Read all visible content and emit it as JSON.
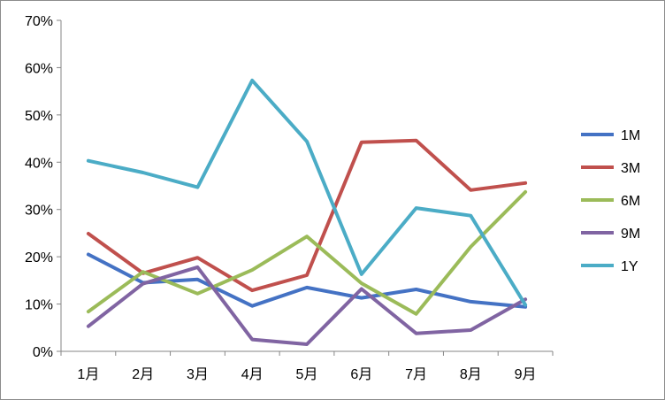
{
  "chart_data": {
    "type": "line",
    "title": "",
    "xlabel": "",
    "ylabel": "",
    "categories": [
      "1月",
      "2月",
      "3月",
      "4月",
      "5月",
      "6月",
      "7月",
      "8月",
      "9月"
    ],
    "y_ticks": [
      "0%",
      "10%",
      "20%",
      "30%",
      "40%",
      "50%",
      "60%",
      "70%"
    ],
    "ylim": [
      0,
      70
    ],
    "y_unit": "%",
    "grid": false,
    "legend_position": "right",
    "series": [
      {
        "name": "1M",
        "color": "#4472C4",
        "values": [
          20.5,
          14.5,
          15.2,
          9.6,
          13.5,
          11.3,
          13.1,
          10.5,
          9.4
        ]
      },
      {
        "name": "3M",
        "color": "#C0504D",
        "values": [
          24.9,
          16.5,
          19.8,
          12.9,
          16.1,
          44.2,
          44.6,
          34.1,
          35.6
        ]
      },
      {
        "name": "6M",
        "color": "#9BBB59",
        "values": [
          8.4,
          16.8,
          12.2,
          17.2,
          24.3,
          14.4,
          7.9,
          22.1,
          33.7
        ]
      },
      {
        "name": "9M",
        "color": "#8064A2",
        "values": [
          5.3,
          14.3,
          17.8,
          2.5,
          1.5,
          13.2,
          3.8,
          4.5,
          11.0
        ]
      },
      {
        "name": "1Y",
        "color": "#4BACC6",
        "values": [
          40.3,
          37.8,
          34.7,
          57.3,
          44.4,
          16.3,
          30.3,
          28.7,
          9.8
        ]
      }
    ]
  }
}
